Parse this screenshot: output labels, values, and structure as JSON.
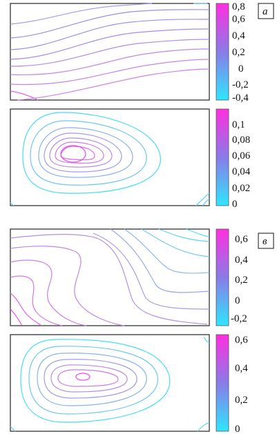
{
  "panels": [
    {
      "id": "a",
      "top": {
        "colorbar_ticks": [
          "0,8",
          "0,6",
          "0,4",
          "0,2",
          "0",
          "-0,2",
          "-0,4"
        ]
      },
      "bottom": {
        "colorbar_ticks": [
          "0,1",
          "0,08",
          "0,06",
          "0,04",
          "0,02",
          "0"
        ]
      },
      "label": "a"
    },
    {
      "id": "b",
      "top": {
        "colorbar_ticks": [
          "0,6",
          "0,4",
          "0,2",
          "0",
          "-0,2"
        ]
      },
      "bottom": {
        "colorbar_ticks": [
          "0,6",
          "0,4",
          "0,2",
          "0"
        ]
      },
      "label": "в"
    }
  ],
  "colors": {
    "low": "#2ee6ff",
    "mid": "#8a7be8",
    "high": "#ff2fe0",
    "frame": "#333333"
  }
}
